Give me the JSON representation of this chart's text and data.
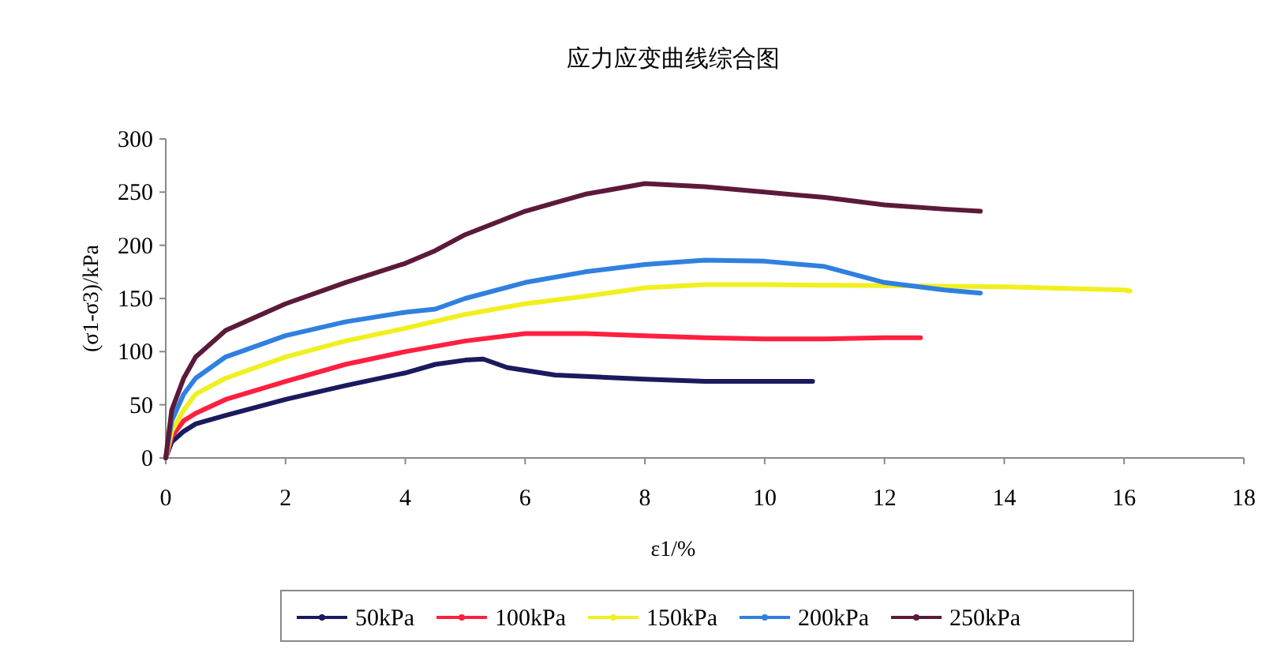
{
  "chart_data": {
    "type": "line",
    "title": "应力应变曲线综合图",
    "xlabel": "ε1/%",
    "ylabel": "(σ1-σ3)/kPa",
    "xlim": [
      0,
      18
    ],
    "xticks": [
      0,
      2,
      4,
      6,
      8,
      10,
      12,
      14,
      16,
      18
    ],
    "ylim": [
      0,
      300
    ],
    "yticks": [
      0,
      50,
      100,
      150,
      200,
      250,
      300
    ],
    "grid": false,
    "legend": "bottom",
    "series": [
      {
        "name": "50kPa",
        "color": "#1a1a5e",
        "x": [
          0,
          0.1,
          0.3,
          0.5,
          1,
          2,
          3,
          4,
          4.5,
          5,
          5.3,
          5.7,
          6.5,
          8,
          9,
          10,
          10.8
        ],
        "values": [
          0,
          15,
          25,
          32,
          40,
          55,
          68,
          80,
          88,
          92,
          93,
          85,
          78,
          74,
          72,
          72,
          72
        ]
      },
      {
        "name": "100kPa",
        "color": "#ff2040",
        "x": [
          0,
          0.1,
          0.3,
          0.5,
          1,
          2,
          3,
          4,
          5,
          6,
          7,
          8,
          9,
          10,
          11,
          12,
          12.6
        ],
        "values": [
          0,
          20,
          35,
          42,
          55,
          72,
          88,
          100,
          110,
          117,
          117,
          115,
          113,
          112,
          112,
          113,
          113
        ]
      },
      {
        "name": "150kPa",
        "color": "#f0f020",
        "x": [
          0,
          0.1,
          0.3,
          0.5,
          1,
          2,
          3,
          4,
          5,
          6,
          7,
          8,
          9,
          10,
          12,
          14,
          16,
          16.1
        ],
        "values": [
          0,
          25,
          45,
          60,
          75,
          95,
          110,
          122,
          135,
          145,
          152,
          160,
          163,
          163,
          162,
          161,
          158,
          157
        ]
      },
      {
        "name": "200kPa",
        "color": "#3080e0",
        "x": [
          0,
          0.1,
          0.3,
          0.5,
          1,
          2,
          3,
          4,
          4.5,
          5,
          6,
          7,
          8,
          9,
          10,
          11,
          12,
          13,
          13.6
        ],
        "values": [
          0,
          35,
          60,
          75,
          95,
          115,
          128,
          137,
          140,
          150,
          165,
          175,
          182,
          186,
          185,
          180,
          165,
          158,
          155
        ]
      },
      {
        "name": "250kPa",
        "color": "#5c1a3a",
        "x": [
          0,
          0.1,
          0.3,
          0.5,
          1,
          2,
          3,
          4,
          4.5,
          5,
          6,
          7,
          8,
          9,
          10,
          11,
          12,
          13,
          13.6
        ],
        "values": [
          0,
          45,
          75,
          95,
          120,
          145,
          165,
          183,
          195,
          210,
          232,
          248,
          258,
          255,
          250,
          245,
          238,
          234,
          232
        ]
      }
    ]
  }
}
